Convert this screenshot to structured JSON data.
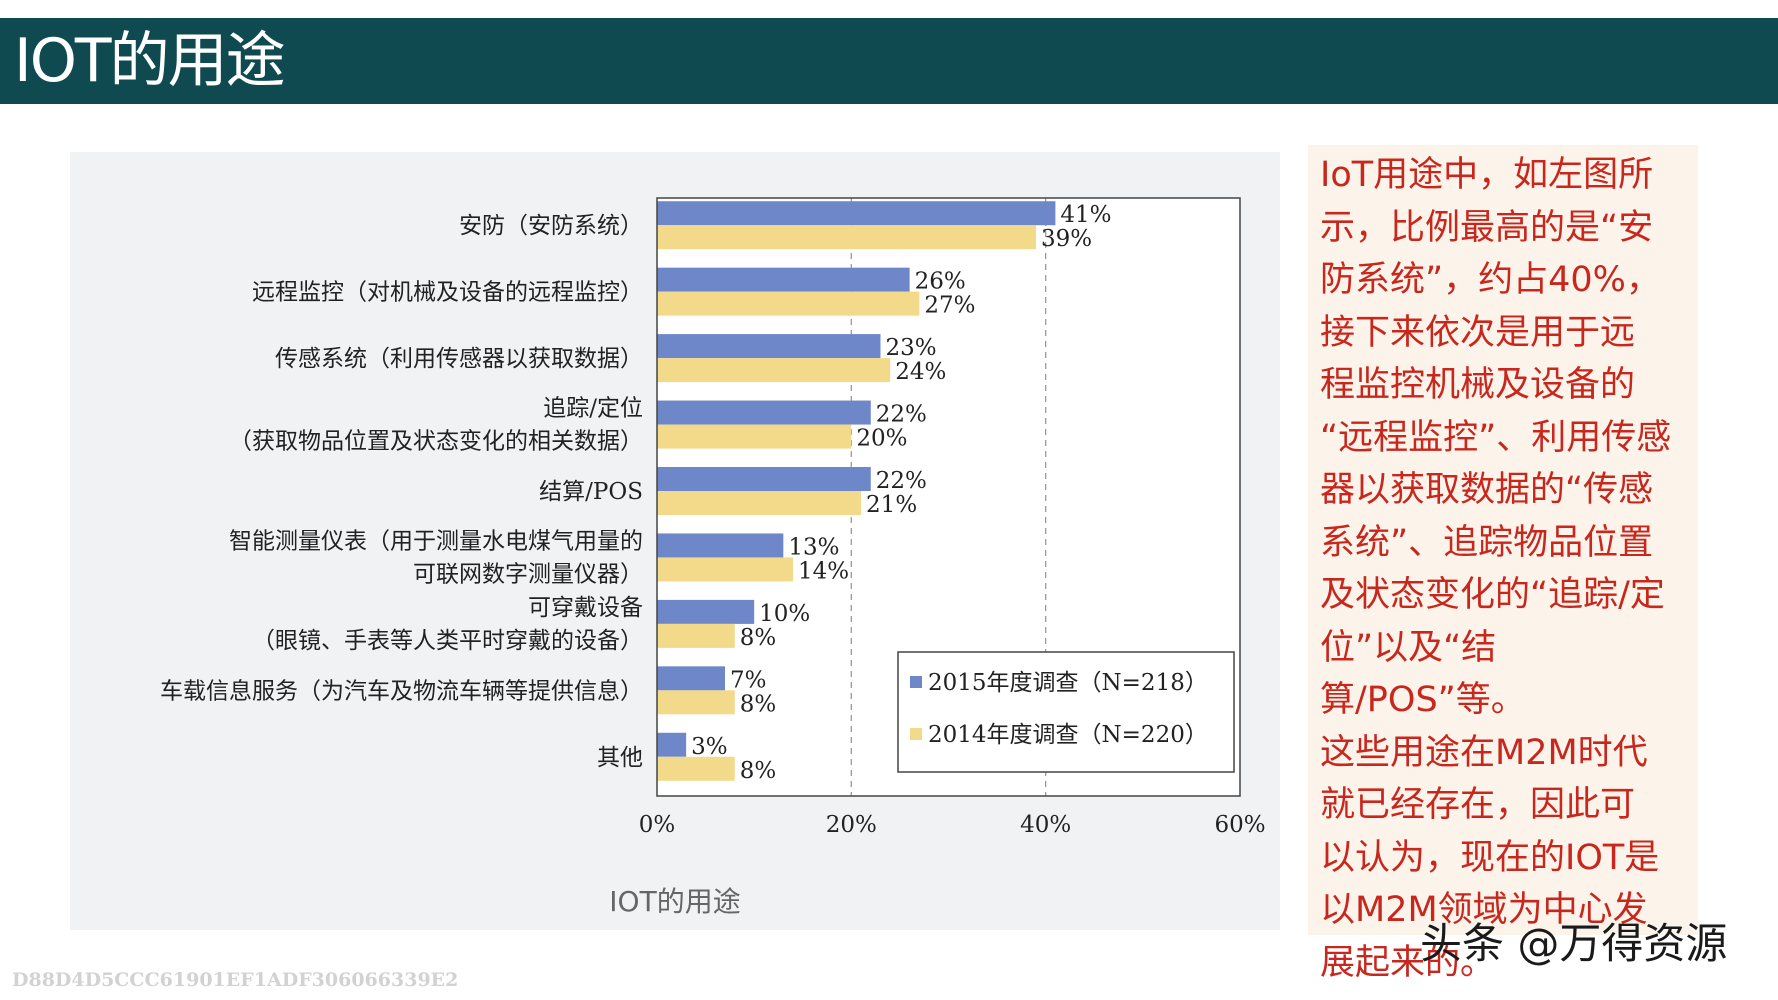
{
  "page": {
    "title": "IOT的用途"
  },
  "chart_caption": "IOT的用途",
  "colors": {
    "title_bar": "#0f4a50",
    "series_2015": "#6e87c9",
    "series_2014": "#f3d98a",
    "note_text": "#c8271e"
  },
  "chart_data": {
    "type": "bar",
    "orientation": "horizontal",
    "title": "",
    "xlabel": "",
    "ylabel": "",
    "xlim": [
      0,
      60
    ],
    "xticks": [
      "0%",
      "20%",
      "40%",
      "60%"
    ],
    "grid": "vertical dashed at 20% and 40%",
    "legend_position": "bottom-right",
    "categories": [
      [
        "安防（安防系统）"
      ],
      [
        "远程监控（对机械及设备的远程监控）"
      ],
      [
        "传感系统（利用传感器以获取数据）"
      ],
      [
        "追踪/定位",
        "（获取物品位置及状态变化的相关数据）"
      ],
      [
        "结算/POS"
      ],
      [
        "智能测量仪表（用于测量水电煤气用量的",
        "可联网数字测量仪器）"
      ],
      [
        "可穿戴设备",
        "（眼镜、手表等人类平时穿戴的设备）"
      ],
      [
        "车载信息服务（为汽车及物流车辆等提供信息）"
      ],
      [
        "其他"
      ]
    ],
    "series": [
      {
        "name": "2015年度调查（N=218）",
        "values": [
          41,
          26,
          23,
          22,
          22,
          13,
          10,
          7,
          3
        ],
        "labels": [
          "41%",
          "26%",
          "23%",
          "22%",
          "22%",
          "13%",
          "10%",
          "7%",
          "3%"
        ]
      },
      {
        "name": "2014年度调查（N=220）",
        "values": [
          39,
          27,
          24,
          20,
          21,
          14,
          8,
          8,
          8
        ],
        "labels": [
          "39%",
          "27%",
          "24%",
          "20%",
          "21%",
          "14%",
          "8%",
          "8%",
          "8%"
        ]
      }
    ]
  },
  "note": {
    "lines": [
      "IoT用途中，如左图所",
      "示，比例最高的是“安",
      "防系统”，约占40%，",
      "接下来依次是用于远",
      "程监控机械及设备的",
      "“远程监控”、利用传感",
      "器以获取数据的“传感",
      "系统”、追踪物品位置",
      "及状态变化的“追踪/定",
      "位”以及“结算/POS”等。",
      "这些用途在M2M时代",
      "就已经存在，因此可",
      "以认为，现在的IOT是",
      "以M2M领域为中心发",
      "展起来的。"
    ]
  },
  "watermark": "头条 @万得资源",
  "doc_id": "D88D4D5CCC61901EF1ADF306066339E2"
}
